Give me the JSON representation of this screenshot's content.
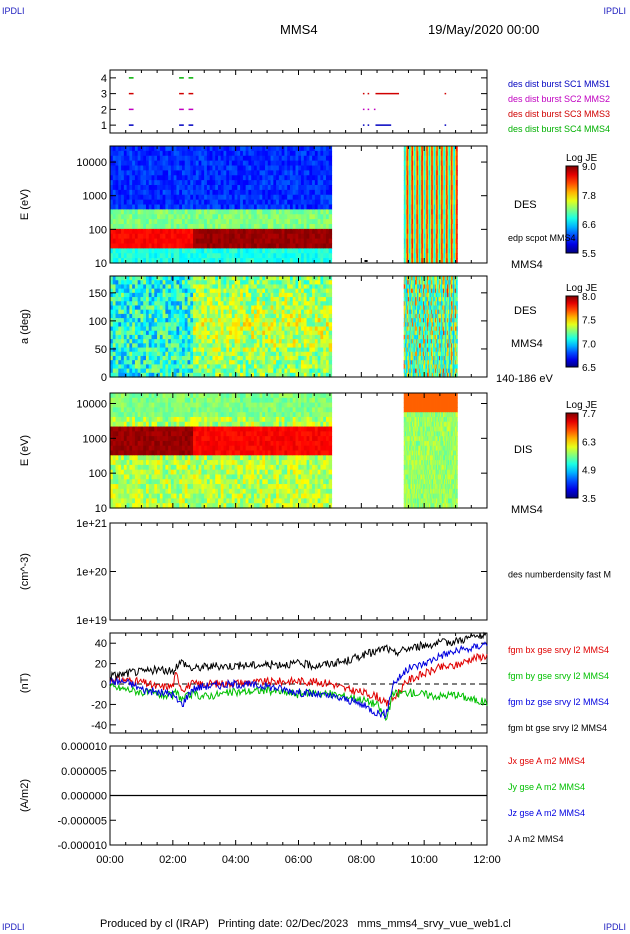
{
  "corner_label": "IPDLI",
  "header": {
    "spacecraft": "MMS4",
    "date": "19/May/2020 00:00"
  },
  "footer": {
    "text": "Produced by cl (IRAP)   Printing date: 02/Dec/2023   mms_mms4_srvy_vue_web1.cl"
  },
  "time_axis": {
    "range_hours": [
      0,
      12
    ],
    "ticks": [
      "00:00",
      "02:00",
      "04:00",
      "06:00",
      "08:00",
      "10:00",
      "12:00"
    ]
  },
  "chart_data": [
    {
      "type": "scatter",
      "panel": "burst",
      "ylim": [
        0.5,
        4.5
      ],
      "yticks": [
        "1",
        "2",
        "3",
        "4"
      ],
      "legend": [
        {
          "label": "des dist burst SC1 MMS1",
          "color": "#0000c0",
          "y": 1
        },
        {
          "label": "des dist burst SC2 MMS2",
          "color": "#c000c0",
          "y": 2
        },
        {
          "label": "des dist burst SC3 MMS3",
          "color": "#d00000",
          "y": 3
        },
        {
          "label": "des dist burst SC4 MMS4",
          "color": "#00b000",
          "y": 4
        }
      ],
      "segments": [
        {
          "y": 4,
          "t": [
            [
              0.6,
              0.75
            ],
            [
              2.2,
              2.35
            ],
            [
              2.5,
              2.65
            ]
          ]
        },
        {
          "y": 3,
          "t": [
            [
              0.6,
              0.75
            ],
            [
              2.2,
              2.35
            ],
            [
              2.5,
              2.65
            ],
            [
              8.05,
              8.1
            ],
            [
              8.2,
              8.25
            ],
            [
              8.45,
              9.2
            ],
            [
              10.65,
              10.7
            ]
          ]
        },
        {
          "y": 2,
          "t": [
            [
              0.6,
              0.75
            ],
            [
              2.2,
              2.35
            ],
            [
              2.5,
              2.65
            ],
            [
              8.05,
              8.1
            ],
            [
              8.2,
              8.25
            ],
            [
              8.4,
              8.45
            ]
          ]
        },
        {
          "y": 1,
          "t": [
            [
              0.6,
              0.75
            ],
            [
              2.2,
              2.35
            ],
            [
              2.5,
              2.65
            ],
            [
              8.05,
              8.1
            ],
            [
              8.2,
              8.25
            ],
            [
              8.45,
              8.95
            ],
            [
              10.65,
              10.7
            ]
          ]
        }
      ]
    },
    {
      "type": "heatmap",
      "panel": "des-energy",
      "ylabel": "E (eV)",
      "yscale": "log",
      "ylim": [
        10,
        30000
      ],
      "yticks": [
        "10",
        "100",
        "1000",
        "10000"
      ],
      "right_labels": [
        "DES",
        "edp scpot MMS4",
        "MMS4"
      ],
      "colorbar": {
        "title": "Log JE",
        "range": [
          5.5,
          9.0
        ],
        "ticks": [
          "9.0",
          "7.8",
          "6.6",
          "5.5"
        ]
      },
      "data_intervals": [
        [
          0,
          7.05
        ],
        [
          9.35,
          11.05
        ]
      ]
    },
    {
      "type": "heatmap",
      "panel": "des-pitch",
      "ylabel": "a (deg)",
      "ylim": [
        0,
        180
      ],
      "yticks": [
        "0",
        "50",
        "100",
        "150"
      ],
      "right_labels": [
        "DES",
        "MMS4",
        "140-186 eV"
      ],
      "colorbar": {
        "title": "Log JE",
        "range": [
          6.5,
          8.0
        ],
        "ticks": [
          "8.0",
          "7.5",
          "7.0",
          "6.5"
        ]
      },
      "data_intervals": [
        [
          0,
          7.05
        ],
        [
          9.35,
          11.05
        ]
      ]
    },
    {
      "type": "heatmap",
      "panel": "dis-energy",
      "ylabel": "E (eV)",
      "yscale": "log",
      "ylim": [
        10,
        20000
      ],
      "yticks": [
        "10",
        "100",
        "1000",
        "10000"
      ],
      "right_labels": [
        "DIS",
        "MMS4"
      ],
      "colorbar": {
        "title": "Log JE",
        "range": [
          3.5,
          7.7
        ],
        "ticks": [
          "7.7",
          "6.3",
          "4.9",
          "3.5"
        ]
      },
      "data_intervals": [
        [
          0,
          7.05
        ],
        [
          9.35,
          11.05
        ]
      ]
    },
    {
      "type": "line",
      "panel": "density",
      "ylabel": "(cm^-3)",
      "yscale": "log",
      "yticks": [
        "1e+21",
        "1e+20",
        "1e+19"
      ],
      "series": [
        {
          "name": "des numberdensity fast M",
          "values": []
        }
      ]
    },
    {
      "type": "line",
      "panel": "fgm",
      "ylabel": "(nT)",
      "ylim": [
        -48,
        50
      ],
      "yticks": [
        "40",
        "20",
        "0",
        "-20",
        "-40"
      ],
      "x": [
        0,
        0.5,
        0.7,
        1,
        1.5,
        2,
        2.1,
        2.3,
        2.6,
        3,
        4,
        5,
        6,
        6.5,
        7,
        7.5,
        8,
        8.5,
        8.8,
        9,
        9.5,
        10,
        10.5,
        11,
        11.5,
        12
      ],
      "series": [
        {
          "name": "fgm bx gse srvy l2 MMS4",
          "color": "#e00000",
          "values": [
            5,
            4,
            3,
            2,
            -3,
            -2,
            10,
            -5,
            0,
            0,
            1,
            2,
            3,
            2,
            1,
            -5,
            -8,
            -12,
            -20,
            -15,
            4,
            10,
            16,
            18,
            25,
            28
          ]
        },
        {
          "name": "fgm by gse srvy l2 MMS4",
          "color": "#00c000",
          "values": [
            -3,
            -5,
            -6,
            -8,
            -10,
            -12,
            -8,
            -15,
            -10,
            -12,
            -8,
            -6,
            -10,
            -8,
            -10,
            -12,
            -15,
            -20,
            -35,
            -10,
            -8,
            -10,
            -12,
            -10,
            -15,
            -18
          ]
        },
        {
          "name": "fgm bz gse srvy l2 MMS4",
          "color": "#0000e0",
          "values": [
            3,
            2,
            0,
            -5,
            -8,
            -10,
            -15,
            -20,
            -5,
            -2,
            0,
            -2,
            -8,
            -10,
            -12,
            -15,
            -20,
            -28,
            -30,
            0,
            15,
            20,
            28,
            32,
            35,
            40
          ]
        },
        {
          "name": "fgm bt gse srvy l2 MMS4",
          "color": "#000000",
          "values": [
            8,
            10,
            12,
            12,
            14,
            12,
            18,
            22,
            15,
            17,
            18,
            19,
            20,
            18,
            20,
            22,
            28,
            32,
            36,
            30,
            35,
            38,
            40,
            42,
            46,
            48
          ]
        }
      ]
    },
    {
      "type": "line",
      "panel": "current",
      "ylabel": "(A/m2)",
      "ylim": [
        -0.0001,
        0.0001
      ],
      "yticks": [
        "0.000010",
        "0.000005",
        "0.000000",
        "-0.000005",
        "-0.000010"
      ],
      "series": [
        {
          "name": "Jx gse A m2 MMS4",
          "color": "#e00000",
          "values": []
        },
        {
          "name": "Jy gse A m2 MMS4",
          "color": "#00c000",
          "values": []
        },
        {
          "name": "Jz gse A m2 MMS4",
          "color": "#0000e0",
          "values": []
        },
        {
          "name": "J A m2 MMS4",
          "color": "#000000",
          "values": []
        }
      ]
    }
  ]
}
